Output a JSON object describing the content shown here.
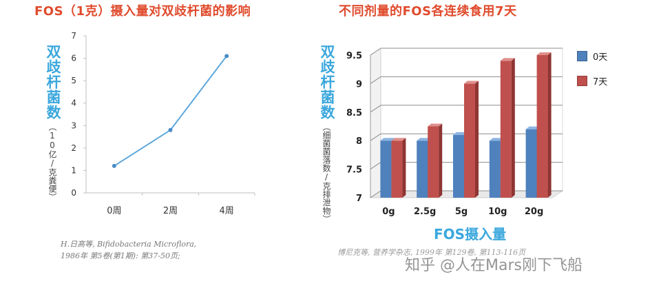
{
  "left": {
    "title": "FOS（1克）摄入量对双歧杆菌的影响",
    "ylabel": "双歧杆菌数",
    "yunit": "（10亿/克粪便）",
    "citation_line1": "H.日高等, Bifidobacteria Microflora,",
    "citation_line2": "1986年 第5卷(第1期): 第37-50页;"
  },
  "right": {
    "title": "不同剂量的FOS各连续食用7天",
    "ylabel": "双歧杆菌数",
    "yunit": "（细菌菌落数/克排泄物）",
    "xlabel": "FOS摄入量",
    "citation": "博尼克等, 营养学杂志, 1999年 第129卷, 第113-116页",
    "watermark": "知乎 @人在Mars刚下飞船"
  },
  "colors": {
    "line": "#5aa7dc",
    "blue": "#4f81bd",
    "red": "#c0504d",
    "title": "#e04b2d",
    "accent": "#3aa7dd"
  },
  "chart_data": [
    {
      "type": "line",
      "title": "FOS（1克）摄入量对双歧杆菌的影响",
      "ylabel": "双歧杆菌数（10亿/克粪便）",
      "categories": [
        "0周",
        "2周",
        "4周"
      ],
      "values": [
        1.2,
        2.8,
        6.1
      ],
      "ylim": [
        0,
        7
      ],
      "yticks": [
        "0",
        "1",
        "2",
        "3",
        "4",
        "5",
        "6",
        "7"
      ],
      "grid": false
    },
    {
      "type": "bar",
      "title": "不同剂量的FOS各连续食用7天",
      "xlabel": "FOS摄入量",
      "ylabel": "双歧杆菌数（细菌菌落数/克排泄物）",
      "categories": [
        "0g",
        "2.5g",
        "5g",
        "10g",
        "20g"
      ],
      "series": [
        {
          "name": "0天",
          "values": [
            8.0,
            8.0,
            8.1,
            8.0,
            8.2
          ]
        },
        {
          "name": "7天",
          "values": [
            8.0,
            8.25,
            9.0,
            9.4,
            9.5
          ]
        }
      ],
      "ylim": [
        7,
        9.5
      ],
      "yticks": [
        "7",
        "7.5",
        "8",
        "8.5",
        "9",
        "9.5"
      ],
      "grid": true,
      "legend": "right"
    }
  ]
}
